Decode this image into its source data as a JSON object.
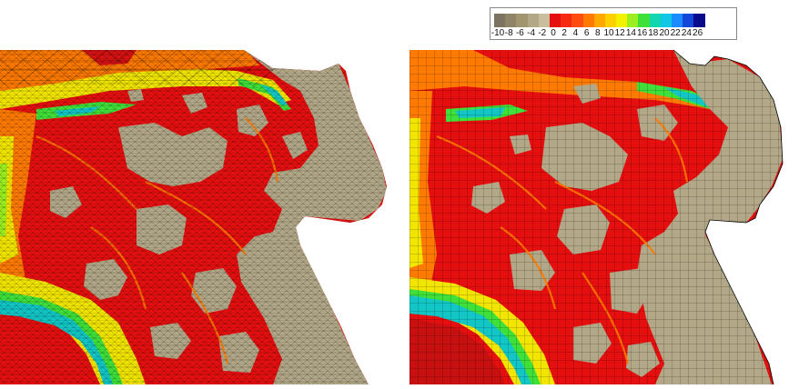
{
  "colors": {
    "land": "#b2a888",
    "shallow_red": "#e60f0f",
    "deep_red": "#c81010",
    "orange": "#ff7a00",
    "yellow": "#f2e600",
    "green": "#3fe03a",
    "cyan": "#12c6c6",
    "mesh": "#000000"
  },
  "legend": {
    "items": [
      {
        "label": "-10",
        "color": "#7d7361"
      },
      {
        "label": "-8",
        "color": "#8f8468"
      },
      {
        "label": "-6",
        "color": "#a1956f"
      },
      {
        "label": "-4",
        "color": "#b2a888"
      },
      {
        "label": "-2",
        "color": "#c9bf9f"
      },
      {
        "label": "0",
        "color": "#e60f0f"
      },
      {
        "label": "2",
        "color": "#f52a10"
      },
      {
        "label": "4",
        "color": "#ff4d12"
      },
      {
        "label": "6",
        "color": "#ff7a00"
      },
      {
        "label": "8",
        "color": "#ffa800"
      },
      {
        "label": "10",
        "color": "#ffd000"
      },
      {
        "label": "12",
        "color": "#f2f200"
      },
      {
        "label": "14",
        "color": "#9bef20"
      },
      {
        "label": "16",
        "color": "#3fe03a"
      },
      {
        "label": "18",
        "color": "#12d6b0"
      },
      {
        "label": "20",
        "color": "#12c6e6"
      },
      {
        "label": "22",
        "color": "#1a8cff"
      },
      {
        "label": "24",
        "color": "#1446d8"
      },
      {
        "label": "26",
        "color": "#0a0a8c"
      }
    ]
  },
  "panels": [
    {
      "mesh": "triangular"
    },
    {
      "mesh": "quadrilateral"
    }
  ]
}
